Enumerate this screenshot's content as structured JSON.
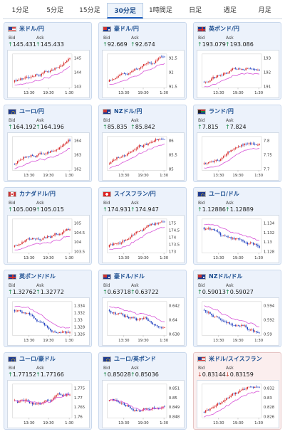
{
  "tabs": [
    {
      "label": "1分足",
      "active": false
    },
    {
      "label": "5分足",
      "active": false
    },
    {
      "label": "15分足",
      "active": false
    },
    {
      "label": "30分足",
      "active": true
    },
    {
      "label": "1時間足",
      "active": false
    },
    {
      "label": "日足",
      "active": false
    },
    {
      "label": "週足",
      "active": false
    },
    {
      "label": "月足",
      "active": false
    }
  ],
  "labels": {
    "bid": "Bid",
    "ask": "Ask"
  },
  "colors": {
    "up_candle": "#d62a2a",
    "down_candle": "#1f3fbf",
    "ma_line": "#d64fd6",
    "up_arrow": "#1b8a4a",
    "down_arrow": "#c0392b"
  },
  "cards": [
    {
      "name": "米ドル/円",
      "flag": "us",
      "dir": "up",
      "bid": "145.431",
      "ask": "145.433",
      "yticks": [
        "145",
        "144",
        "143"
      ],
      "xticks": [
        "13:30",
        "19:30",
        "1:30"
      ],
      "trend": "up",
      "highlight": false
    },
    {
      "name": "豪ドル/円",
      "flag": "au",
      "dir": "up",
      "bid": "92.669",
      "ask": "92.674",
      "yticks": [
        "92.5",
        "92",
        "91.5"
      ],
      "xticks": [
        "13:30",
        "19:30",
        "1:30"
      ],
      "trend": "up",
      "highlight": false
    },
    {
      "name": "英ポンド/円",
      "flag": "gb",
      "dir": "up",
      "bid": "193.079",
      "ask": "193.086",
      "yticks": [
        "193",
        "192",
        "191"
      ],
      "xticks": [
        "13:30",
        "19:30",
        "1:30"
      ],
      "trend": "up",
      "highlight": false
    },
    {
      "name": "ユーロ/円",
      "flag": "eu",
      "dir": "up",
      "bid": "164.192",
      "ask": "164.196",
      "yticks": [
        "164",
        "163",
        "162"
      ],
      "xticks": [
        "13:30",
        "19:30",
        "1:30"
      ],
      "trend": "up",
      "highlight": false
    },
    {
      "name": "NZドル/円",
      "flag": "nz",
      "dir": "up",
      "bid": "85.835",
      "ask": "85.842",
      "yticks": [
        "86",
        "85.5",
        "85"
      ],
      "xticks": [
        "13:30",
        "19:30",
        "1:30"
      ],
      "trend": "up",
      "highlight": false
    },
    {
      "name": "ランド/円",
      "flag": "za",
      "dir": "up",
      "bid": "7.815",
      "ask": "7.824",
      "yticks": [
        "7.8",
        "7.75",
        "7.7"
      ],
      "xticks": [
        "13:30",
        "19:30",
        "1:30"
      ],
      "trend": "up",
      "highlight": false
    },
    {
      "name": "カナダドル/円",
      "flag": "ca",
      "dir": "up",
      "bid": "105.009",
      "ask": "105.015",
      "yticks": [
        "105",
        "104.5",
        "104",
        "103.5"
      ],
      "xticks": [
        "13:30",
        "19:30",
        "1:30"
      ],
      "trend": "up",
      "highlight": false
    },
    {
      "name": "スイスフラン/円",
      "flag": "ch",
      "dir": "up",
      "bid": "174.931",
      "ask": "174.947",
      "yticks": [
        "175",
        "174.5",
        "174",
        "173.5",
        "173"
      ],
      "xticks": [
        "13:30",
        "19:30",
        "1:30"
      ],
      "trend": "up",
      "highlight": false
    },
    {
      "name": "ユーロ/ドル",
      "flag": "eu",
      "dir": "up",
      "bid": "1.12886",
      "ask": "1.12889",
      "yticks": [
        "1.134",
        "1.132",
        "1.13",
        "1.128"
      ],
      "xticks": [
        "13:30",
        "19:30",
        "1:30"
      ],
      "trend": "down",
      "highlight": false
    },
    {
      "name": "英ポンド/ドル",
      "flag": "gb",
      "dir": "up",
      "bid": "1.32762",
      "ask": "1.32772",
      "yticks": [
        "1.334",
        "1.332",
        "1.33",
        "1.328",
        "1.326"
      ],
      "xticks": [
        "13:30",
        "19:30",
        "1:30"
      ],
      "trend": "down",
      "highlight": false
    },
    {
      "name": "豪ドル/ドル",
      "flag": "au",
      "dir": "up",
      "bid": "0.63718",
      "ask": "0.63722",
      "yticks": [
        "0.642",
        "0.64",
        "0.638"
      ],
      "xticks": [
        "13:30",
        "19:30",
        "1:30"
      ],
      "trend": "down",
      "highlight": false
    },
    {
      "name": "NZドル/ドル",
      "flag": "nz",
      "dir": "up",
      "bid": "0.59013",
      "ask": "0.59027",
      "yticks": [
        "0.594",
        "0.592",
        "0.59"
      ],
      "xticks": [
        "13:30",
        "19:30",
        "1:30"
      ],
      "trend": "down",
      "highlight": false
    },
    {
      "name": "ユーロ/豪ドル",
      "flag": "eu",
      "dir": "up",
      "bid": "1.77152",
      "ask": "1.77166",
      "yticks": [
        "1.775",
        "1.77",
        "1.765",
        "1.76"
      ],
      "xticks": [
        "13:30",
        "19:30",
        "1:30"
      ],
      "trend": "flat",
      "highlight": false
    },
    {
      "name": "ユーロ/英ポンド",
      "flag": "eu",
      "dir": "up",
      "bid": "0.85028",
      "ask": "0.85036",
      "yticks": [
        "0.851",
        "0.85",
        "0.849",
        "0.848"
      ],
      "xticks": [
        "13:30",
        "19:30",
        "1:30"
      ],
      "trend": "flat",
      "highlight": false
    },
    {
      "name": "米ドル/スイスフラン",
      "flag": "us",
      "dir": "down",
      "bid": "0.83144",
      "ask": "0.83159",
      "yticks": [
        "0.832",
        "0.83",
        "0.828",
        "0.826"
      ],
      "xticks": [
        "13:30",
        "19:30",
        "1:30"
      ],
      "trend": "up",
      "highlight": true
    }
  ]
}
